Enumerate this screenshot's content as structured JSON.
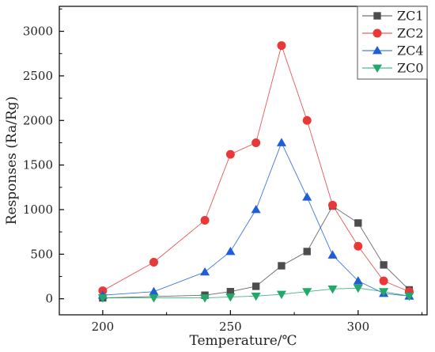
{
  "chart_data": {
    "type": "line",
    "title": "",
    "xlabel": "Temperature/℃",
    "ylabel": "Responses (Ra/Rg)",
    "xlim": [
      183,
      327
    ],
    "ylim": [
      -180,
      3280
    ],
    "xticks": [
      200,
      250,
      300
    ],
    "yticks": [
      0,
      500,
      1000,
      1500,
      2000,
      2500,
      3000
    ],
    "legend": "top-right",
    "grid": false,
    "series": [
      {
        "name": "ZC1",
        "color": "#4d4d4d",
        "marker": "square",
        "x": [
          200,
          240,
          250,
          260,
          270,
          280,
          290,
          300,
          310,
          320
        ],
        "y": [
          10,
          40,
          80,
          140,
          370,
          530,
          1040,
          850,
          380,
          100
        ]
      },
      {
        "name": "ZC2",
        "color": "#e83838",
        "marker": "circle",
        "x": [
          200,
          220,
          240,
          250,
          260,
          270,
          280,
          290,
          300,
          310,
          320
        ],
        "y": [
          90,
          410,
          880,
          1620,
          1750,
          2840,
          2000,
          1050,
          590,
          200,
          80
        ]
      },
      {
        "name": "ZC4",
        "color": "#1f5fd6",
        "marker": "triangle-up",
        "x": [
          200,
          220,
          240,
          250,
          260,
          270,
          280,
          290,
          300,
          310,
          320
        ],
        "y": [
          40,
          80,
          300,
          530,
          1000,
          1750,
          1140,
          490,
          200,
          60,
          30
        ]
      },
      {
        "name": "ZC0",
        "color": "#23a86b",
        "marker": "triangle-down",
        "x": [
          200,
          220,
          240,
          250,
          260,
          270,
          280,
          290,
          300,
          310,
          320
        ],
        "y": [
          10,
          10,
          10,
          20,
          30,
          50,
          80,
          110,
          120,
          80,
          30
        ]
      }
    ]
  }
}
